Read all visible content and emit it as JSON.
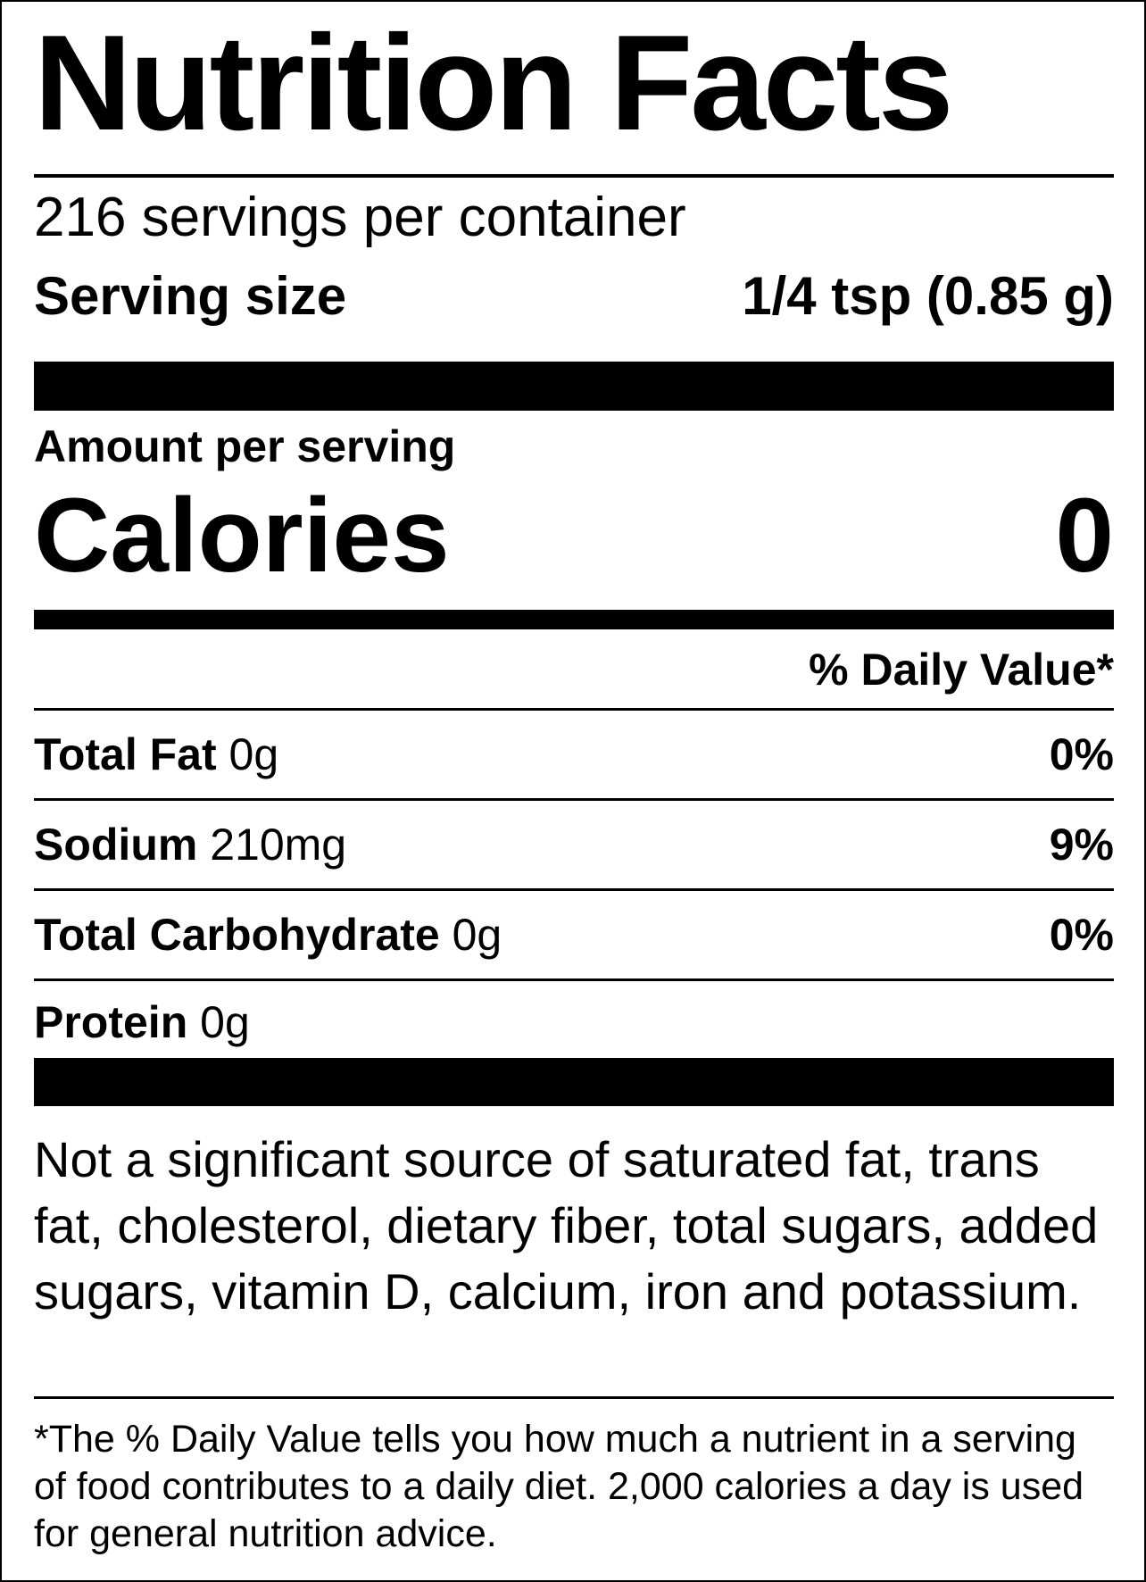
{
  "title": "Nutrition Facts",
  "servings_per_container": "216 servings per container",
  "serving_size": {
    "label": "Serving size",
    "value": "1/4 tsp (0.85 g)"
  },
  "amount_per_serving": "Amount per serving",
  "calories": {
    "label": "Calories",
    "value": "0"
  },
  "daily_value_header": "% Daily Value*",
  "nutrients": [
    {
      "name": "Total Fat",
      "amount": "0g",
      "dv": "0%"
    },
    {
      "name": "Sodium",
      "amount": "210mg",
      "dv": "9%"
    },
    {
      "name": "Total Carbohydrate",
      "amount": "0g",
      "dv": "0%"
    },
    {
      "name": "Protein",
      "amount": "0g",
      "dv": ""
    }
  ],
  "not_significant": "Not a significant source of saturated fat, trans fat, cholesterol, dietary fiber, total sugars, added sugars, vitamin D, calcium, iron and potassium.",
  "footnote": "*The % Daily Value tells you how much a nutrient in a serving of food contributes to a daily diet. 2,000 calories a day is used for general nutrition advice."
}
